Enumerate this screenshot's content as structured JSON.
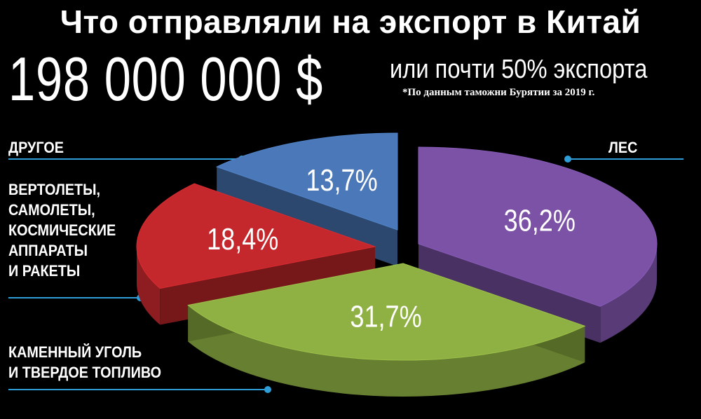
{
  "header": {
    "title": "Что отправляли на экспорт в Китай",
    "total": "198 000 000 $",
    "subtitle": "или почти 50% экспорта",
    "source_note": "*По данным таможни Бурятии за 2019 г."
  },
  "chart_data": {
    "type": "pie",
    "title": "Что отправляли на экспорт в Китай",
    "slices": [
      {
        "label": "ЛЕС",
        "value": 36.2,
        "value_label": "36,2%",
        "color": "#7b52a6"
      },
      {
        "label": "КАМЕННЫЙ УГОЛЬ\nИ ТВЕРДОЕ ТОПЛИВО",
        "value": 31.7,
        "value_label": "31,7%",
        "color": "#8fb043"
      },
      {
        "label": "ВЕРТОЛЕТЫ,\nСАМОЛЕТЫ,\nКОСМИЧЕСКИЕ\nАППАРАТЫ\nИ РАКЕТЫ",
        "value": 18.4,
        "value_label": "18,4%",
        "color": "#c4282c"
      },
      {
        "label": "ДРУГОЕ",
        "value": 13.7,
        "value_label": "13,7%",
        "color": "#4a78b8"
      }
    ],
    "legend_placement": "around",
    "leader_color": "#2f9ed8"
  }
}
